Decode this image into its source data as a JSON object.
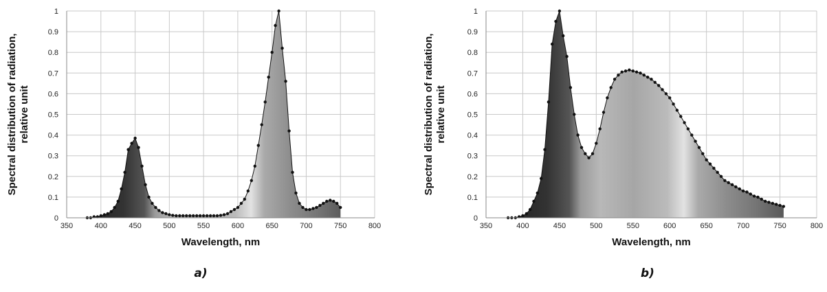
{
  "chart_data": [
    {
      "type": "area",
      "panel_label": "a)",
      "xlabel": "Wavelength, nm",
      "ylabel_line1": "Spectral distribution of radiation,",
      "ylabel_line2": "relative unit",
      "xlim": [
        350,
        800
      ],
      "ylim": [
        0,
        1
      ],
      "xticks": [
        350,
        400,
        450,
        500,
        550,
        600,
        650,
        700,
        750,
        800
      ],
      "yticks": [
        0,
        0.1,
        0.2,
        0.3,
        0.4,
        0.5,
        0.6,
        0.7,
        0.8,
        0.9,
        1
      ],
      "ytick_labels": [
        "0",
        "0.1",
        "0.2",
        "0.3",
        "0.4",
        "0.5",
        "0.6",
        "0.7",
        "0.8",
        "0.9",
        "1"
      ],
      "grid": true,
      "series": [
        {
          "x": [
            380,
            385,
            390,
            395,
            400,
            405,
            410,
            415,
            420,
            425,
            430,
            435,
            440,
            445,
            450,
            455,
            460,
            465,
            470,
            475,
            480,
            485,
            490,
            495,
            500,
            505,
            510,
            515,
            520,
            525,
            530,
            535,
            540,
            545,
            550,
            555,
            560,
            565,
            570,
            575,
            580,
            585,
            590,
            595,
            600,
            605,
            610,
            615,
            620,
            625,
            630,
            635,
            640,
            645,
            650,
            655,
            660,
            665,
            670,
            675,
            680,
            685,
            690,
            695,
            700,
            705,
            710,
            715,
            720,
            725,
            730,
            735,
            740,
            745,
            750
          ],
          "y": [
            0.0,
            0.0,
            0.005,
            0.005,
            0.01,
            0.015,
            0.02,
            0.03,
            0.05,
            0.08,
            0.14,
            0.22,
            0.33,
            0.36,
            0.385,
            0.34,
            0.25,
            0.16,
            0.1,
            0.07,
            0.05,
            0.035,
            0.025,
            0.02,
            0.015,
            0.012,
            0.01,
            0.01,
            0.01,
            0.01,
            0.01,
            0.01,
            0.01,
            0.01,
            0.01,
            0.01,
            0.01,
            0.01,
            0.01,
            0.012,
            0.015,
            0.02,
            0.03,
            0.04,
            0.05,
            0.07,
            0.09,
            0.13,
            0.18,
            0.25,
            0.35,
            0.45,
            0.56,
            0.68,
            0.8,
            0.93,
            1.0,
            0.82,
            0.66,
            0.42,
            0.22,
            0.12,
            0.07,
            0.05,
            0.04,
            0.04,
            0.045,
            0.05,
            0.06,
            0.07,
            0.08,
            0.085,
            0.08,
            0.07,
            0.05
          ]
        }
      ]
    },
    {
      "type": "area",
      "panel_label": "b)",
      "xlabel": "Wavelength, nm",
      "ylabel_line1": "Spectral distribution of radiation,",
      "ylabel_line2": "relative unit",
      "xlim": [
        350,
        800
      ],
      "ylim": [
        0,
        1
      ],
      "xticks": [
        350,
        400,
        450,
        500,
        550,
        600,
        650,
        700,
        750,
        800
      ],
      "yticks": [
        0,
        0.1,
        0.2,
        0.3,
        0.4,
        0.5,
        0.6,
        0.7,
        0.8,
        0.9,
        1
      ],
      "ytick_labels": [
        "0",
        "0.1",
        "0.2",
        "0.3",
        "0.4",
        "0.5",
        "0.6",
        "0.7",
        "0.8",
        "0.9",
        "1"
      ],
      "grid": true,
      "series": [
        {
          "x": [
            380,
            385,
            390,
            395,
            400,
            405,
            410,
            415,
            420,
            425,
            430,
            435,
            440,
            445,
            450,
            455,
            460,
            465,
            470,
            475,
            480,
            485,
            490,
            495,
            500,
            505,
            510,
            515,
            520,
            525,
            530,
            535,
            540,
            545,
            550,
            555,
            560,
            565,
            570,
            575,
            580,
            585,
            590,
            595,
            600,
            605,
            610,
            615,
            620,
            625,
            630,
            635,
            640,
            645,
            650,
            655,
            660,
            665,
            670,
            675,
            680,
            685,
            690,
            695,
            700,
            705,
            710,
            715,
            720,
            725,
            730,
            735,
            740,
            745,
            750,
            755
          ],
          "y": [
            0.0,
            0.0,
            0.0,
            0.005,
            0.01,
            0.02,
            0.04,
            0.08,
            0.12,
            0.19,
            0.33,
            0.56,
            0.84,
            0.95,
            1.0,
            0.88,
            0.78,
            0.63,
            0.5,
            0.4,
            0.34,
            0.31,
            0.29,
            0.31,
            0.36,
            0.43,
            0.51,
            0.58,
            0.63,
            0.67,
            0.69,
            0.705,
            0.71,
            0.715,
            0.71,
            0.705,
            0.7,
            0.69,
            0.68,
            0.67,
            0.655,
            0.64,
            0.62,
            0.6,
            0.58,
            0.55,
            0.52,
            0.49,
            0.46,
            0.43,
            0.4,
            0.37,
            0.34,
            0.31,
            0.28,
            0.26,
            0.24,
            0.22,
            0.2,
            0.18,
            0.17,
            0.16,
            0.15,
            0.14,
            0.13,
            0.125,
            0.115,
            0.105,
            0.1,
            0.09,
            0.08,
            0.075,
            0.07,
            0.065,
            0.06,
            0.055
          ]
        }
      ]
    }
  ]
}
